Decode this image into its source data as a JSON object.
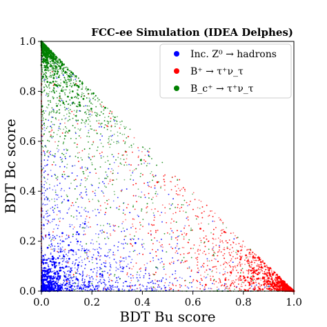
{
  "chart_data": {
    "type": "scatter",
    "title": "FCC-ee Simulation (IDEA Delphes)",
    "xlabel": "BDT Bu score",
    "ylabel": "BDT Bc score",
    "xlim": [
      0.0,
      1.0
    ],
    "ylim": [
      0.0,
      1.0
    ],
    "xticks": [
      "0.0",
      "0.2",
      "0.4",
      "0.6",
      "0.8",
      "1.0"
    ],
    "yticks": [
      "0.0",
      "0.2",
      "0.4",
      "0.6",
      "0.8",
      "1.0"
    ],
    "grid": false,
    "legend_position": "top-right",
    "series": [
      {
        "name": "Inc. Z⁰ → hadrons",
        "color": "#0000ff",
        "mode": [
          0.0,
          0.0
        ]
      },
      {
        "name": "B⁺ → τ⁺ν_τ",
        "color": "#ff0000",
        "mode": [
          1.0,
          0.0
        ]
      },
      {
        "name": "B_c⁺ → τ⁺ν_τ",
        "color": "#008000",
        "mode": [
          0.0,
          1.0
        ]
      }
    ]
  }
}
